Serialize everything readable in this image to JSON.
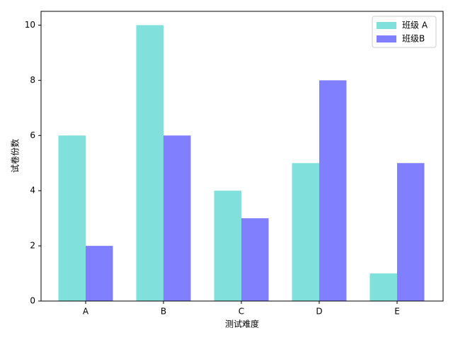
{
  "chart_data": {
    "type": "bar",
    "categories": [
      "A",
      "B",
      "C",
      "D",
      "E"
    ],
    "series": [
      {
        "name": "班级 A",
        "color": "#7fe0dc",
        "values": [
          6,
          10,
          4,
          5,
          1
        ]
      },
      {
        "name": "班级B",
        "color": "#8080ff",
        "values": [
          2,
          6,
          3,
          8,
          5
        ]
      }
    ],
    "x_label": "测试难度",
    "y_label": "试卷份数",
    "ylim": [
      0,
      10.5
    ],
    "yticks": [
      0,
      2,
      4,
      6,
      8,
      10
    ],
    "legend": "upper right"
  }
}
